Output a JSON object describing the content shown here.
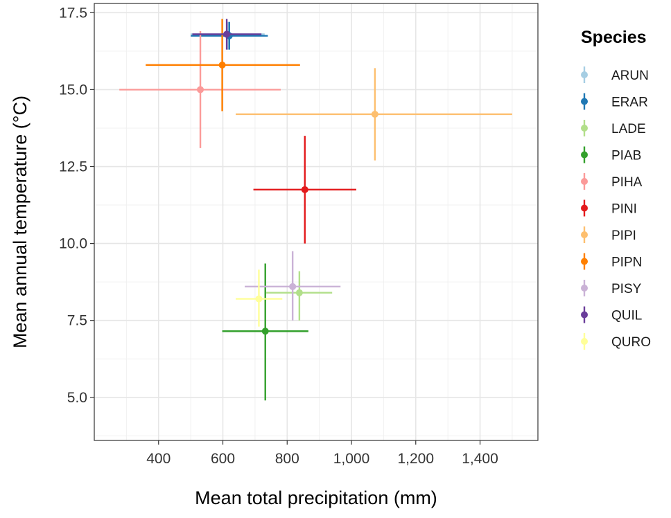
{
  "chart_data": {
    "type": "scatter",
    "subtype": "point-with-crossed-error-bars",
    "title": "",
    "xlabel": "Mean total precipitation (mm)",
    "ylabel": "Mean annual temperature (°C)",
    "xlim": [
      200,
      1580
    ],
    "ylim": [
      3.6,
      17.8
    ],
    "xticks": [
      400,
      600,
      800,
      1000,
      1200,
      1400
    ],
    "xtick_labels": [
      "400",
      "600",
      "800",
      "1,000",
      "1,200",
      "1,400"
    ],
    "yticks": [
      5.0,
      7.5,
      10.0,
      12.5,
      15.0,
      17.5
    ],
    "ytick_labels": [
      "5.0",
      "7.5",
      "10.0",
      "12.5",
      "15.0",
      "17.5"
    ],
    "grid": true,
    "legend_title": "Species",
    "legend_position": "right",
    "series": [
      {
        "name": "ARUN",
        "color": "#a6cee3",
        "x": 615,
        "y": 16.8,
        "xmin": 500,
        "xmax": 730,
        "ymin": 16.3,
        "ymax": 17.2
      },
      {
        "name": "ERAR",
        "color": "#1f78b4",
        "x": 620,
        "y": 16.75,
        "xmin": 500,
        "xmax": 740,
        "ymin": 16.3,
        "ymax": 17.2
      },
      {
        "name": "LADE",
        "color": "#b2df8a",
        "x": 838,
        "y": 8.4,
        "xmin": 735,
        "xmax": 940,
        "ymin": 7.5,
        "ymax": 9.1
      },
      {
        "name": "PIAB",
        "color": "#33a02c",
        "x": 732,
        "y": 7.15,
        "xmin": 598,
        "xmax": 866,
        "ymin": 4.9,
        "ymax": 9.35
      },
      {
        "name": "PIHA",
        "color": "#fb9a99",
        "x": 530,
        "y": 15.0,
        "xmin": 278,
        "xmax": 780,
        "ymin": 13.1,
        "ymax": 16.9
      },
      {
        "name": "PINI",
        "color": "#e31a1c",
        "x": 855,
        "y": 11.75,
        "xmin": 695,
        "xmax": 1015,
        "ymin": 10.0,
        "ymax": 13.5
      },
      {
        "name": "PIPI",
        "color": "#fdbf6f",
        "x": 1073,
        "y": 14.2,
        "xmin": 640,
        "xmax": 1500,
        "ymin": 12.7,
        "ymax": 15.7
      },
      {
        "name": "PIPN",
        "color": "#ff7f00",
        "x": 598,
        "y": 15.8,
        "xmin": 360,
        "xmax": 840,
        "ymin": 14.3,
        "ymax": 17.3
      },
      {
        "name": "PISY",
        "color": "#cab2d6",
        "x": 817,
        "y": 8.6,
        "xmin": 668,
        "xmax": 966,
        "ymin": 7.5,
        "ymax": 9.75
      },
      {
        "name": "QUIL",
        "color": "#6a3d9a",
        "x": 612,
        "y": 16.8,
        "xmin": 505,
        "xmax": 720,
        "ymin": 16.3,
        "ymax": 17.3
      },
      {
        "name": "QURO",
        "color": "#ffff99",
        "x": 712,
        "y": 8.2,
        "xmin": 640,
        "xmax": 785,
        "ymin": 7.3,
        "ymax": 9.15
      }
    ]
  }
}
